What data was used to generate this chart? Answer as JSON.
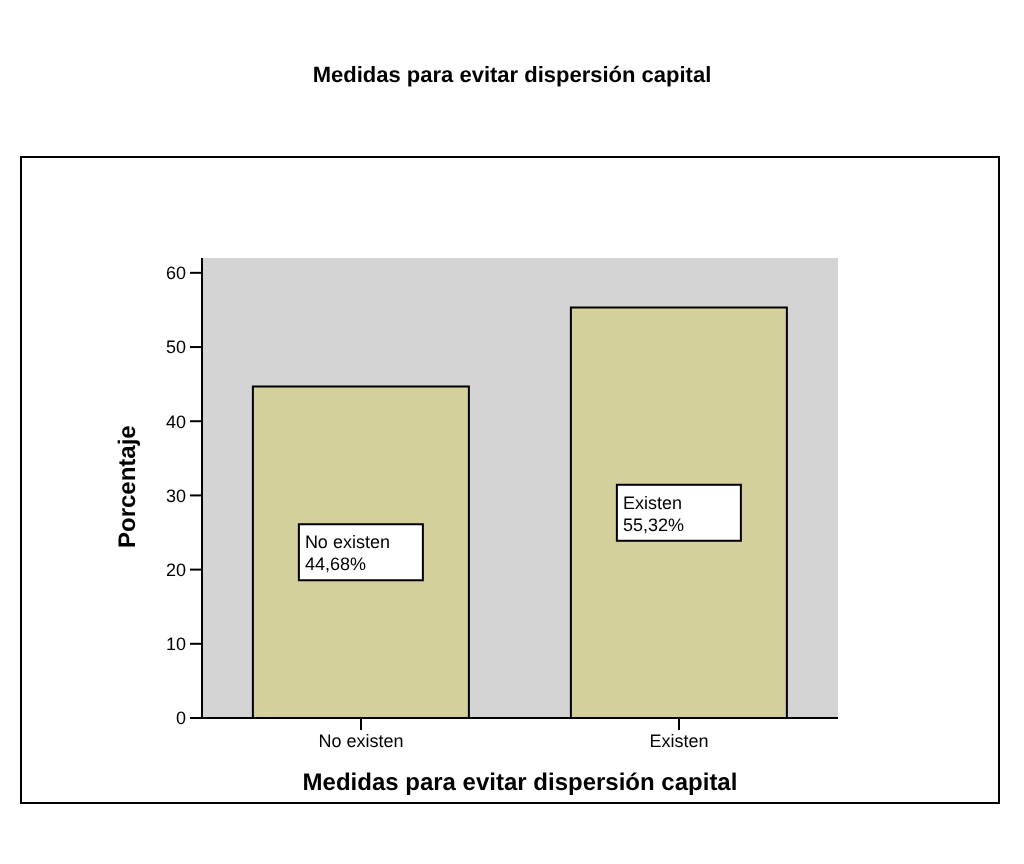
{
  "chart_data": {
    "type": "bar",
    "title": "Medidas para evitar dispersión capital",
    "xlabel": "Medidas para evitar dispersión capital",
    "ylabel": "Porcentaje",
    "categories": [
      "No existen",
      "Existen"
    ],
    "values": [
      44.68,
      55.32
    ],
    "value_labels": [
      "No existen\n44,68%",
      "Existen\n55,32%"
    ],
    "color": "#d4d09c",
    "ylim": [
      0,
      62
    ],
    "yticks": [
      0,
      10,
      20,
      30,
      40,
      50,
      60
    ]
  }
}
